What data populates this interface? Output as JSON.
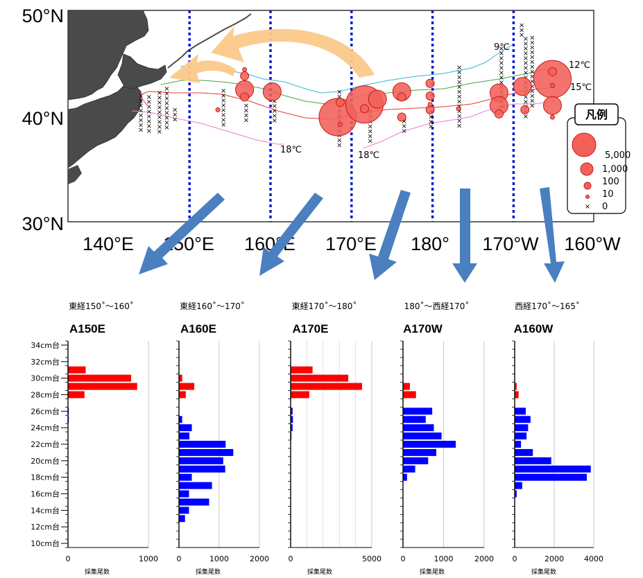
{
  "colors": {
    "isotherm_9": "#33b5d6",
    "isotherm_12": "#41a741",
    "isotherm_15": "#e53935",
    "isotherm_18": "#e87fd0",
    "catch_fill": "#f3605a",
    "catch_stroke": "#c51a12",
    "migration_arrow": "#fbc98a",
    "section_arrow": "#4a7fc0",
    "section_line": "#0f1fcf",
    "land": "#4a4a4a",
    "bar_red": "#ff0000",
    "bar_blue": "#0000ff"
  },
  "map": {
    "lat_labels": [
      "50°N",
      "40°N",
      "30°N"
    ],
    "lon_labels": [
      "140°E",
      "150°E",
      "160°E",
      "170°E",
      "180°",
      "170°W",
      "160°W"
    ],
    "isotherm_labels": [
      "9℃",
      "12℃",
      "15℃",
      "18℃",
      "18℃"
    ],
    "legend": {
      "title": "凡例",
      "labels": [
        "5,000",
        "1,000",
        "100",
        "10",
        "0"
      ]
    }
  },
  "chart_data": [
    {
      "type": "bubble-map",
      "title": "",
      "xlabel": "",
      "ylabel": "",
      "xlim": [
        135,
        200
      ],
      "ylim": [
        30,
        50
      ],
      "note": "longitude in degrees east (180 = 180°, 190 = 170°W)",
      "section_lines_lon": [
        150,
        160,
        170,
        180,
        190
      ],
      "stations": [
        {
          "lon": 156.8,
          "lat": 44.4,
          "catch": 10
        },
        {
          "lon": 156.8,
          "lat": 43.8,
          "catch": 100
        },
        {
          "lon": 156.8,
          "lat": 42.5,
          "catch": 1000
        },
        {
          "lon": 156.8,
          "lat": 41.8,
          "catch": 100
        },
        {
          "lon": 160.2,
          "lat": 42.3,
          "catch": 1000
        },
        {
          "lon": 153.5,
          "lat": 40.6,
          "catch": 10
        },
        {
          "lon": 168.3,
          "lat": 39.9,
          "catch": 5000
        },
        {
          "lon": 168.6,
          "lat": 41.3,
          "catch": 100
        },
        {
          "lon": 168.6,
          "lat": 39.2,
          "catch": 10
        },
        {
          "lon": 171.6,
          "lat": 41.1,
          "catch": 5000
        },
        {
          "lon": 173.2,
          "lat": 41.6,
          "catch": 1000
        },
        {
          "lon": 171.6,
          "lat": 40.7,
          "catch": 100
        },
        {
          "lon": 176.2,
          "lat": 42.3,
          "catch": 1000
        },
        {
          "lon": 176.2,
          "lat": 41.8,
          "catch": 100
        },
        {
          "lon": 176.2,
          "lat": 39.9,
          "catch": 100
        },
        {
          "lon": 179.7,
          "lat": 43.1,
          "catch": 100
        },
        {
          "lon": 179.7,
          "lat": 41.9,
          "catch": 100
        },
        {
          "lon": 179.7,
          "lat": 41.1,
          "catch": 10
        },
        {
          "lon": 179.7,
          "lat": 40.6,
          "catch": 100
        },
        {
          "lon": 183.2,
          "lat": 40.7,
          "catch": 10
        },
        {
          "lon": 188.2,
          "lat": 42.2,
          "catch": 1000
        },
        {
          "lon": 188.2,
          "lat": 41.0,
          "catch": 1000
        },
        {
          "lon": 188.2,
          "lat": 40.2,
          "catch": 100
        },
        {
          "lon": 191.1,
          "lat": 42.8,
          "catch": 1000
        },
        {
          "lon": 191.4,
          "lat": 40.6,
          "catch": 100
        },
        {
          "lon": 194.8,
          "lat": 43.5,
          "catch": 5000
        },
        {
          "lon": 194.8,
          "lat": 44.2,
          "catch": 100
        },
        {
          "lon": 194.8,
          "lat": 41.0,
          "catch": 1000
        },
        {
          "lon": 194.8,
          "lat": 39.9,
          "catch": 10
        },
        {
          "lon": 194.8,
          "lat": 42.9,
          "catch": 10
        }
      ],
      "zero_catch_columns": [
        {
          "lon": 144.0,
          "lat_top": 41.9,
          "lat_bottom": 38.5
        },
        {
          "lon": 145.0,
          "lat_top": 41.8,
          "lat_bottom": 38.5
        },
        {
          "lon": 146.3,
          "lat_top": 42.2,
          "lat_bottom": 38.5
        },
        {
          "lon": 147.2,
          "lat_top": 42.6,
          "lat_bottom": 38.6
        },
        {
          "lon": 148.2,
          "lat_top": 40.6,
          "lat_bottom": 39.6
        },
        {
          "lon": 154.2,
          "lat_top": 42.4,
          "lat_bottom": 38.8
        },
        {
          "lon": 157.0,
          "lat_top": 41.0,
          "lat_bottom": 39.4
        },
        {
          "lon": 160.5,
          "lat_top": 41.4,
          "lat_bottom": 39.2
        },
        {
          "lon": 168.5,
          "lat_top": 42.3,
          "lat_bottom": 37.0
        },
        {
          "lon": 172.3,
          "lat_top": 40.4,
          "lat_bottom": 37.6
        },
        {
          "lon": 176.5,
          "lat_top": 39.5,
          "lat_bottom": 38.2
        },
        {
          "lon": 179.8,
          "lat_top": 40.4,
          "lat_bottom": 38.8
        },
        {
          "lon": 183.3,
          "lat_top": 44.6,
          "lat_bottom": 39.1
        },
        {
          "lon": 188.5,
          "lat_top": 46.4,
          "lat_bottom": 40.5
        },
        {
          "lon": 191.5,
          "lat_top": 47.3,
          "lat_bottom": 39.8
        },
        {
          "lon": 192.3,
          "lat_top": 47.4,
          "lat_bottom": 41.0
        },
        {
          "lon": 191.0,
          "lat_top": 48.6,
          "lat_bottom": 47.6
        }
      ]
    },
    {
      "type": "bar",
      "orientation": "horizontal",
      "range_label": "東経150˚～160˚",
      "title": "A150E",
      "xlabel": "採集尾数",
      "ylabel": "",
      "xlim": [
        0,
        1000
      ],
      "xticks": [
        0,
        1000
      ],
      "categories": [
        "10cm台",
        "11cm台",
        "12cm台",
        "13cm台",
        "14cm台",
        "15cm台",
        "16cm台",
        "17cm台",
        "18cm台",
        "19cm台",
        "20cm台",
        "21cm台",
        "22cm台",
        "23cm台",
        "24cm台",
        "25cm台",
        "26cm台",
        "27cm台",
        "28cm台",
        "29cm台",
        "30cm台",
        "31cm台",
        "32cm台",
        "33cm台",
        "34cm台"
      ],
      "values": [
        0,
        0,
        0,
        0,
        0,
        0,
        0,
        0,
        0,
        0,
        0,
        0,
        0,
        0,
        0,
        5,
        10,
        0,
        205,
        860,
        785,
        220,
        0,
        0,
        0
      ],
      "red_from_cm": 27
    },
    {
      "type": "bar",
      "orientation": "horizontal",
      "range_label": "東経160˚～170˚",
      "title": "A160E",
      "xlabel": "採集尾数",
      "ylabel": "",
      "xlim": [
        0,
        2000
      ],
      "xticks": [
        0,
        1000,
        2000
      ],
      "categories": [
        "10cm台",
        "11cm台",
        "12cm台",
        "13cm台",
        "14cm台",
        "15cm台",
        "16cm台",
        "17cm台",
        "18cm台",
        "19cm台",
        "20cm台",
        "21cm台",
        "22cm台",
        "23cm台",
        "24cm台",
        "25cm台",
        "26cm台",
        "27cm台",
        "28cm台",
        "29cm台",
        "30cm台",
        "31cm台",
        "32cm台",
        "33cm台",
        "34cm台"
      ],
      "values": [
        0,
        0,
        0,
        150,
        250,
        750,
        250,
        820,
        320,
        1150,
        1100,
        1350,
        1160,
        260,
        320,
        80,
        0,
        0,
        170,
        380,
        80,
        0,
        0,
        0,
        0
      ],
      "red_from_cm": 27
    },
    {
      "type": "bar",
      "orientation": "horizontal",
      "range_label": "東経170˚～180˚",
      "title": "A170E",
      "xlabel": "採集尾数",
      "ylabel": "",
      "xlim": [
        0,
        5000
      ],
      "xticks": [
        0,
        5000
      ],
      "categories": [
        "10cm台",
        "11cm台",
        "12cm台",
        "13cm台",
        "14cm台",
        "15cm台",
        "16cm台",
        "17cm台",
        "18cm台",
        "19cm台",
        "20cm台",
        "21cm台",
        "22cm台",
        "23cm台",
        "24cm台",
        "25cm台",
        "26cm台",
        "27cm台",
        "28cm台",
        "29cm台",
        "30cm台",
        "31cm台",
        "32cm台",
        "33cm台",
        "34cm台"
      ],
      "values": [
        0,
        0,
        0,
        0,
        0,
        0,
        0,
        0,
        0,
        0,
        0,
        0,
        0,
        40,
        120,
        140,
        120,
        0,
        1150,
        4400,
        3550,
        1350,
        0,
        0,
        0
      ],
      "red_from_cm": 27
    },
    {
      "type": "bar",
      "orientation": "horizontal",
      "range_label": "180˚～西経170˚",
      "title": "A170W",
      "xlabel": "採集尾数",
      "ylabel": "",
      "xlim": [
        0,
        2000
      ],
      "xticks": [
        0,
        1000,
        2000
      ],
      "categories": [
        "10cm台",
        "11cm台",
        "12cm台",
        "13cm台",
        "14cm台",
        "15cm台",
        "16cm台",
        "17cm台",
        "18cm台",
        "19cm台",
        "20cm台",
        "21cm台",
        "22cm台",
        "23cm台",
        "24cm台",
        "25cm台",
        "26cm台",
        "27cm台",
        "28cm台",
        "29cm台",
        "30cm台",
        "31cm台",
        "32cm台",
        "33cm台",
        "34cm台"
      ],
      "values": [
        0,
        0,
        0,
        0,
        0,
        0,
        0,
        0,
        100,
        300,
        620,
        820,
        1300,
        950,
        760,
        560,
        720,
        0,
        320,
        170,
        0,
        0,
        0,
        0,
        0
      ],
      "red_from_cm": 27
    },
    {
      "type": "bar",
      "orientation": "horizontal",
      "range_label": "西経170˚～165˚",
      "title": "A160W",
      "xlabel": "採集尾数",
      "ylabel": "",
      "xlim": [
        0,
        4000
      ],
      "xticks": [
        0,
        2000,
        4000
      ],
      "categories": [
        "10cm台",
        "11cm台",
        "12cm台",
        "13cm台",
        "14cm台",
        "15cm台",
        "16cm台",
        "17cm台",
        "18cm台",
        "19cm台",
        "20cm台",
        "21cm台",
        "22cm台",
        "23cm台",
        "24cm台",
        "25cm台",
        "26cm台",
        "27cm台",
        "28cm台",
        "29cm台",
        "30cm台",
        "31cm台",
        "32cm台",
        "33cm台",
        "34cm台"
      ],
      "values": [
        0,
        0,
        0,
        0,
        0,
        0,
        100,
        380,
        3650,
        3850,
        1850,
        920,
        320,
        600,
        680,
        800,
        560,
        0,
        200,
        100,
        0,
        0,
        0,
        0,
        0
      ],
      "red_from_cm": 27
    }
  ],
  "y_tick_labels": [
    "34cm台",
    "32cm台",
    "30cm台",
    "28cm台",
    "26cm台",
    "24cm台",
    "22cm台",
    "20cm台",
    "18cm台",
    "16cm台",
    "14cm台",
    "12cm台",
    "10cm台"
  ]
}
